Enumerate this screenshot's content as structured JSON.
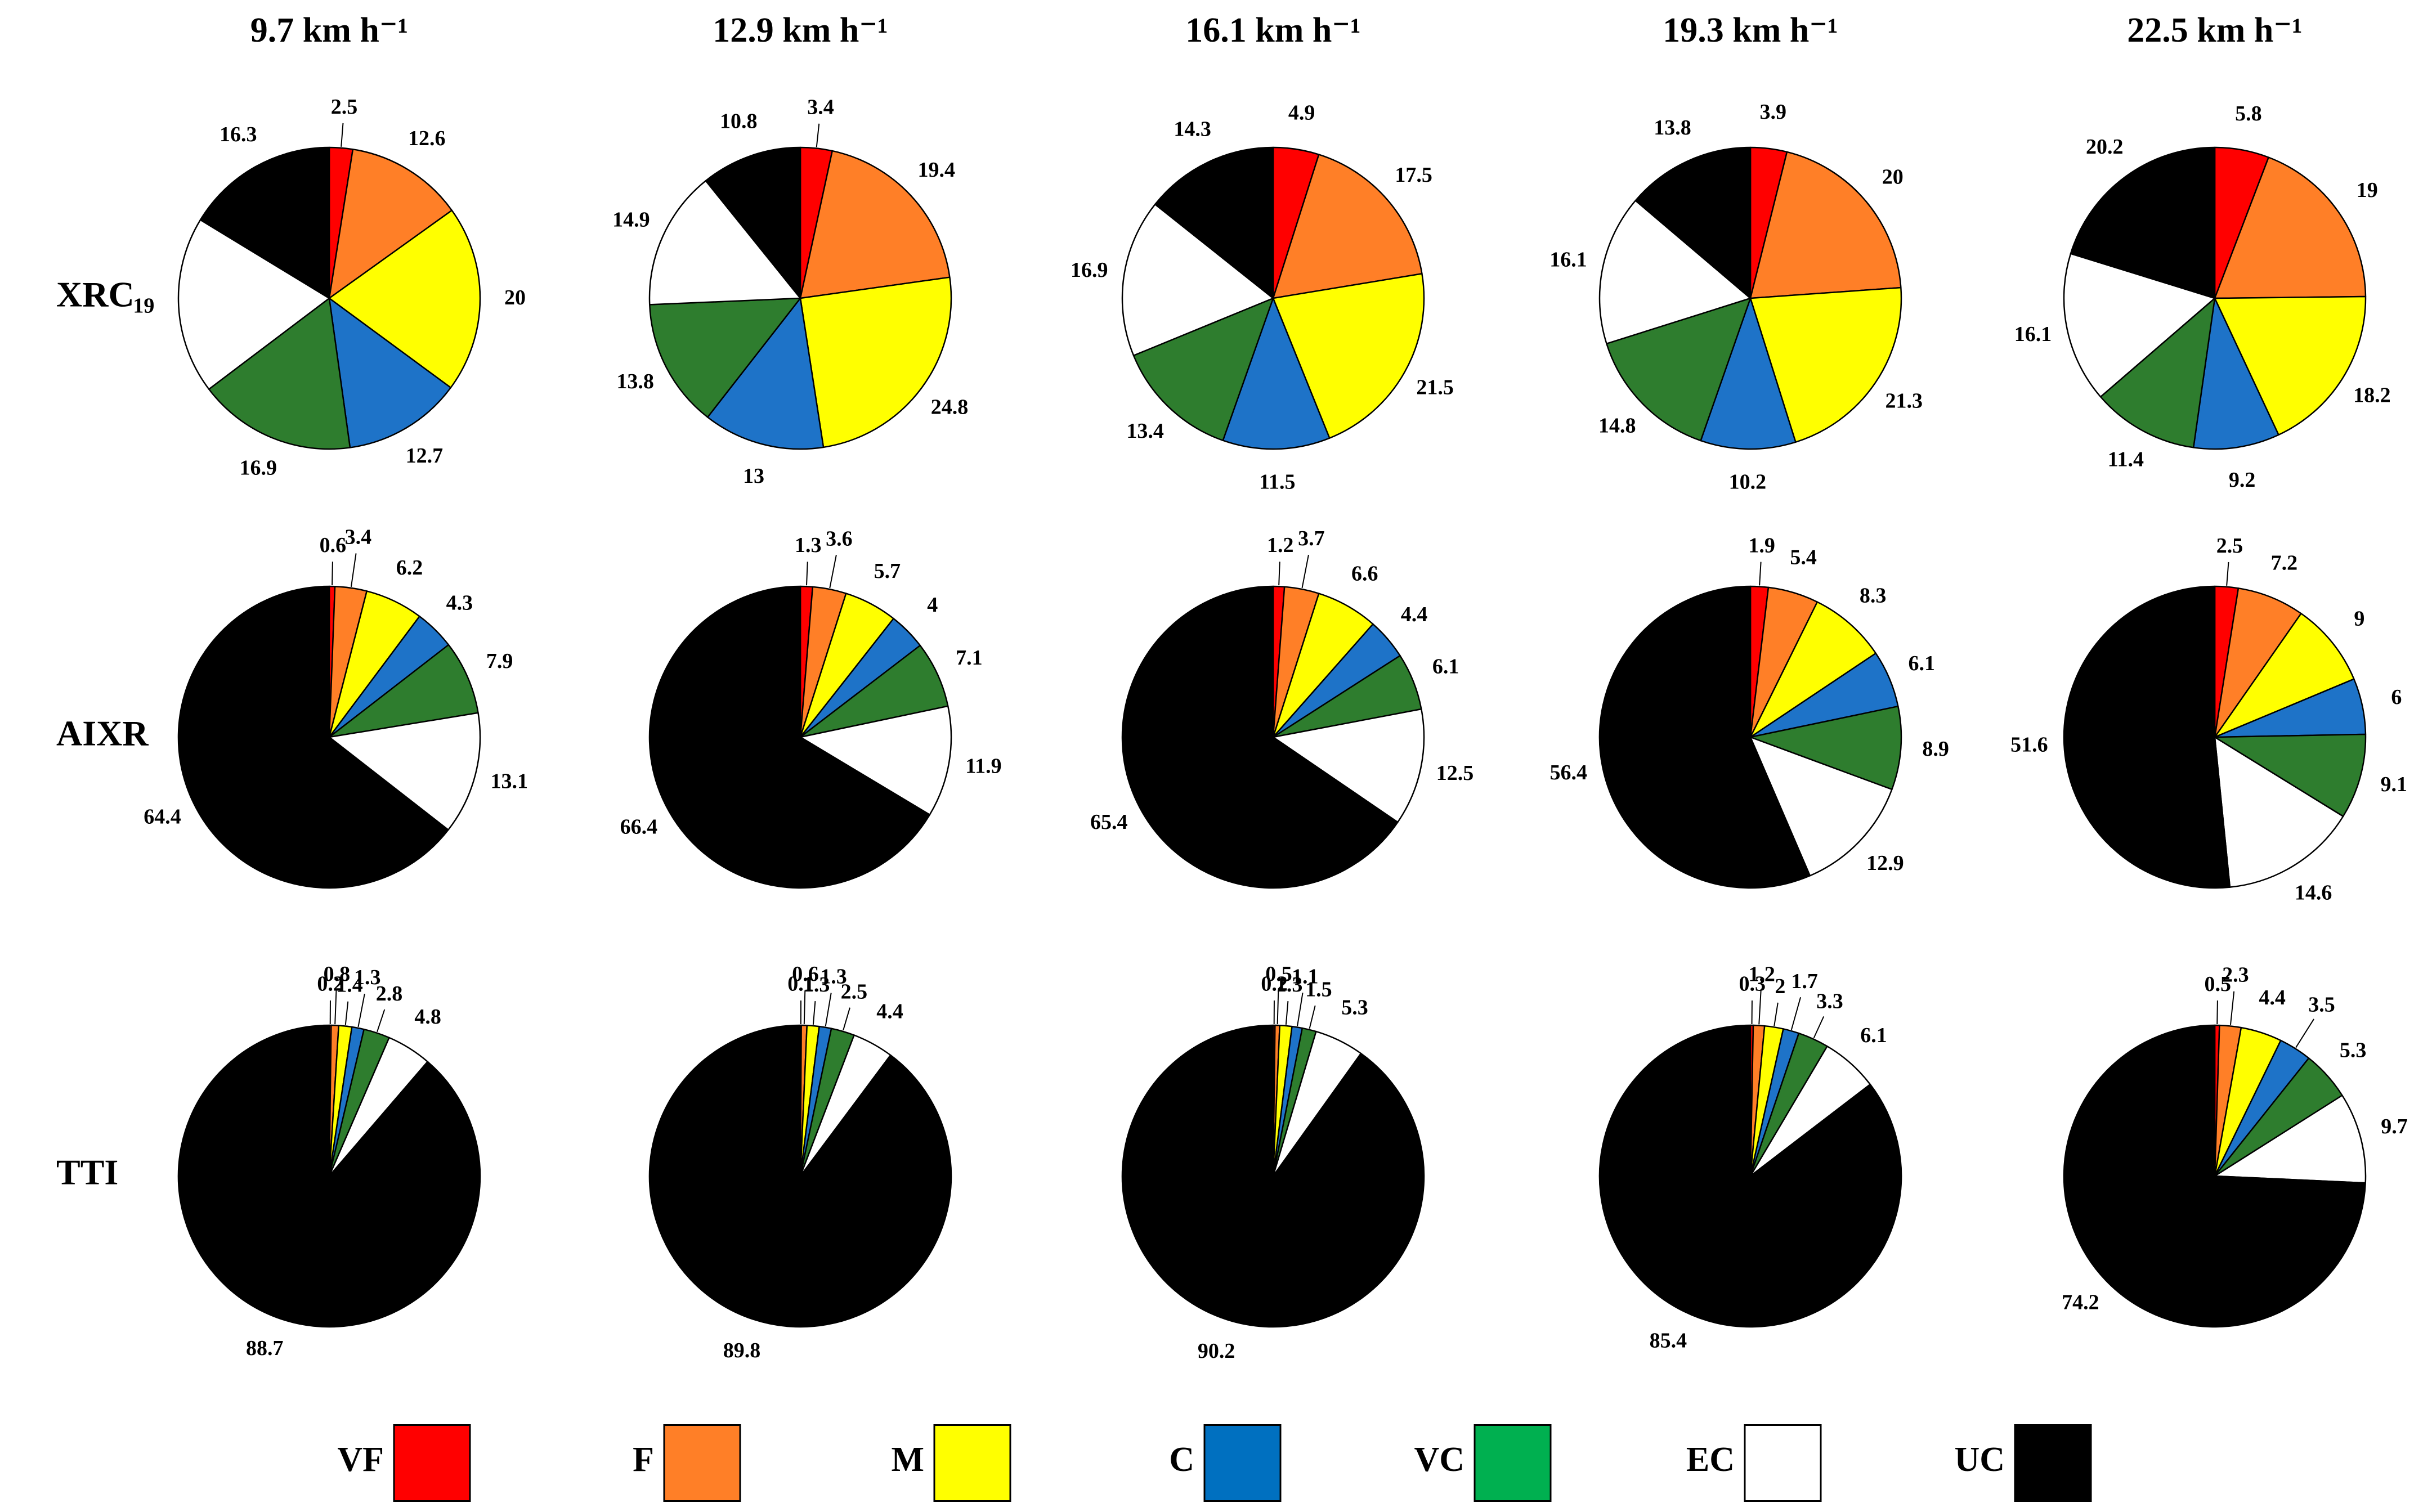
{
  "chart_data": {
    "type": "pie",
    "title": "",
    "columns": [
      "9.7 km h⁻¹",
      "12.9 km h⁻¹",
      "16.1 km h⁻¹",
      "19.3 km h⁻¹",
      "22.5 km h⁻¹"
    ],
    "rows": [
      "XRC",
      "AIXR",
      "TTI"
    ],
    "categories": [
      "VF",
      "F",
      "M",
      "C",
      "VC",
      "EC",
      "UC"
    ],
    "colors": [
      "#ff0000",
      "#ff7f27",
      "#ffff00",
      "#0070c0",
      "#00b050",
      "#ffffff",
      "#000000"
    ],
    "slice_colors": [
      "#ff0000",
      "#ff7f27",
      "#ffff00",
      "#1e73c8",
      "#2e7d2e",
      "#ffffff",
      "#000000"
    ],
    "series": [
      {
        "row": "XRC",
        "speed": "9.7 km h⁻¹",
        "values": [
          2.5,
          12.6,
          20,
          12.7,
          16.9,
          19,
          16.3
        ]
      },
      {
        "row": "XRC",
        "speed": "12.9 km h⁻¹",
        "values": [
          3.4,
          19.4,
          24.8,
          13,
          13.8,
          14.9,
          10.8
        ]
      },
      {
        "row": "XRC",
        "speed": "16.1 km h⁻¹",
        "values": [
          4.9,
          17.5,
          21.5,
          11.5,
          13.4,
          16.9,
          14.3
        ]
      },
      {
        "row": "XRC",
        "speed": "19.3 km h⁻¹",
        "values": [
          3.9,
          20,
          21.3,
          10.2,
          14.8,
          16.1,
          13.8
        ]
      },
      {
        "row": "XRC",
        "speed": "22.5 km h⁻¹",
        "values": [
          5.8,
          19,
          18.2,
          9.2,
          11.4,
          16.1,
          20.2
        ]
      },
      {
        "row": "AIXR",
        "speed": "9.7 km h⁻¹",
        "values": [
          0.6,
          3.4,
          6.2,
          4.3,
          7.9,
          13.1,
          64.4
        ]
      },
      {
        "row": "AIXR",
        "speed": "12.9 km h⁻¹",
        "values": [
          1.3,
          3.6,
          5.7,
          4,
          7.1,
          11.9,
          66.4
        ]
      },
      {
        "row": "AIXR",
        "speed": "16.1 km h⁻¹",
        "values": [
          1.2,
          3.7,
          6.6,
          4.4,
          6.1,
          12.5,
          65.4
        ]
      },
      {
        "row": "AIXR",
        "speed": "19.3 km h⁻¹",
        "values": [
          1.9,
          5.4,
          8.3,
          6.1,
          8.9,
          12.9,
          56.4
        ]
      },
      {
        "row": "AIXR",
        "speed": "22.5 km h⁻¹",
        "values": [
          2.5,
          7.2,
          9,
          6,
          9.1,
          14.6,
          51.6
        ]
      },
      {
        "row": "TTI",
        "speed": "9.7 km h⁻¹",
        "values": [
          0.2,
          0.8,
          1.4,
          1.3,
          2.8,
          4.8,
          88.7
        ]
      },
      {
        "row": "TTI",
        "speed": "12.9 km h⁻¹",
        "values": [
          0.1,
          0.6,
          1.3,
          1.3,
          2.5,
          4.4,
          89.8
        ]
      },
      {
        "row": "TTI",
        "speed": "16.1 km h⁻¹",
        "values": [
          0.2,
          0.5,
          1.3,
          1.1,
          1.5,
          5.3,
          90.2
        ]
      },
      {
        "row": "TTI",
        "speed": "19.3 km h⁻¹",
        "values": [
          0.3,
          1.2,
          2,
          1.7,
          3.3,
          6.1,
          85.4
        ]
      },
      {
        "row": "TTI",
        "speed": "22.5 km h⁻¹",
        "values": [
          0.5,
          2.3,
          4.4,
          3.5,
          5.3,
          9.7,
          74.2
        ]
      }
    ],
    "legend": [
      "VF",
      "F",
      "M",
      "C",
      "VC",
      "EC",
      "UC"
    ],
    "legend_position": "bottom"
  }
}
